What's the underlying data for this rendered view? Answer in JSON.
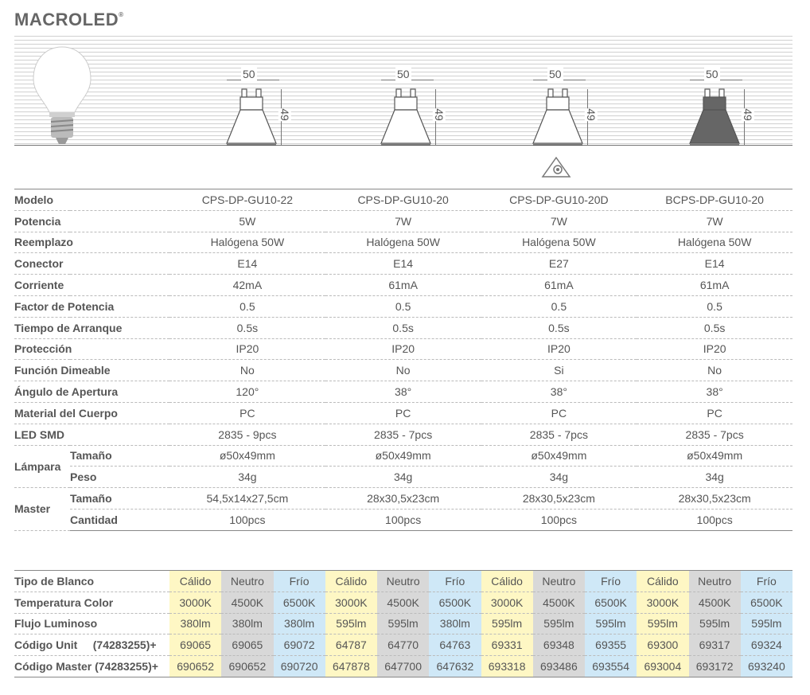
{
  "brand": {
    "name": "MACROLED",
    "mark": "®"
  },
  "dimensions": {
    "width": "50",
    "height": "49"
  },
  "products": [
    {
      "dim_w": "50",
      "dim_h": "49"
    },
    {
      "dim_w": "50",
      "dim_h": "49"
    },
    {
      "dim_w": "50",
      "dim_h": "49"
    },
    {
      "dim_w": "50",
      "dim_h": "49"
    }
  ],
  "spec_rows": [
    {
      "label": "Modelo",
      "values": [
        "CPS-DP-GU10-22",
        "CPS-DP-GU10-20",
        "CPS-DP-GU10-20D",
        "BCPS-DP-GU10-20"
      ]
    },
    {
      "label": "Potencia",
      "values": [
        "5W",
        "7W",
        "7W",
        "7W"
      ]
    },
    {
      "label": "Reemplazo",
      "values": [
        "Halógena 50W",
        "Halógena 50W",
        "Halógena 50W",
        "Halógena 50W"
      ]
    },
    {
      "label": "Conector",
      "values": [
        "E14",
        "E14",
        "E27",
        "E14"
      ]
    },
    {
      "label": "Corriente",
      "values": [
        "42mA",
        "61mA",
        "61mA",
        "61mA"
      ]
    },
    {
      "label": "Factor de Potencia",
      "values": [
        "0.5",
        "0.5",
        "0.5",
        "0.5"
      ]
    },
    {
      "label": "Tiempo de Arranque",
      "values": [
        "0.5s",
        "0.5s",
        "0.5s",
        "0.5s"
      ]
    },
    {
      "label": "Protección",
      "values": [
        "IP20",
        "IP20",
        "IP20",
        "IP20"
      ]
    },
    {
      "label": "Función Dimeable",
      "values": [
        "No",
        "No",
        "Si",
        "No"
      ]
    },
    {
      "label": "Ángulo de Apertura",
      "values": [
        "120°",
        "38°",
        "38°",
        "38°"
      ]
    },
    {
      "label": "Material del Cuerpo",
      "values": [
        "PC",
        "PC",
        "PC",
        "PC"
      ]
    },
    {
      "label": "LED SMD",
      "values": [
        "2835 - 9pcs",
        "2835 - 7pcs",
        "2835 - 7pcs",
        "2835 - 7pcs"
      ]
    }
  ],
  "group_rows": [
    {
      "group": "Lámpara",
      "rows": [
        {
          "label": "Tamaño",
          "values": [
            "ø50x49mm",
            "ø50x49mm",
            "ø50x49mm",
            "ø50x49mm"
          ]
        },
        {
          "label": "Peso",
          "values": [
            "34g",
            "34g",
            "34g",
            "34g"
          ]
        }
      ]
    },
    {
      "group": "Master",
      "rows": [
        {
          "label": "Tamaño",
          "values": [
            "54,5x14x27,5cm",
            "28x30,5x23cm",
            "28x30,5x23cm",
            "28x30,5x23cm"
          ]
        },
        {
          "label": "Cantidad",
          "values": [
            "100pcs",
            "100pcs",
            "100pcs",
            "100pcs"
          ]
        }
      ]
    }
  ],
  "color_rows": [
    {
      "label": "Tipo de Blanco",
      "values": [
        "Cálido",
        "Neutro",
        "Frío",
        "Cálido",
        "Neutro",
        "Frío",
        "Cálido",
        "Neutro",
        "Frío",
        "Cálido",
        "Neutro",
        "Frío"
      ]
    },
    {
      "label": "Temperatura Color",
      "values": [
        "3000K",
        "4500K",
        "6500K",
        "3000K",
        "4500K",
        "6500K",
        "3000K",
        "4500K",
        "6500K",
        "3000K",
        "4500K",
        "6500K"
      ]
    },
    {
      "label": "Flujo Luminoso",
      "values": [
        "380lm",
        "380lm",
        "380lm",
        "595lm",
        "595lm",
        "380lm",
        "595lm",
        "595lm",
        "595lm",
        "595lm",
        "595lm",
        "595lm"
      ]
    },
    {
      "label": "Código Unit     (74283255)+",
      "values": [
        "69065",
        "69065",
        "69072",
        "64787",
        "64770",
        "64763",
        "69331",
        "69348",
        "69355",
        "69300",
        "69317",
        "69324"
      ]
    },
    {
      "label": "Código Master (74283255)+",
      "values": [
        "690652",
        "690652",
        "690720",
        "647878",
        "647700",
        "647632",
        "693318",
        "693486",
        "693554",
        "693004",
        "693172",
        "693240"
      ]
    }
  ],
  "colors": {
    "warm": "#fef7c4",
    "neutral": "#d8d8d8",
    "cold": "#cfe8f7",
    "text": "#555555"
  },
  "icons": {
    "bulb": "bulb-icon",
    "spot": "gu10-spot-icon",
    "dim": "dimmable-icon"
  }
}
